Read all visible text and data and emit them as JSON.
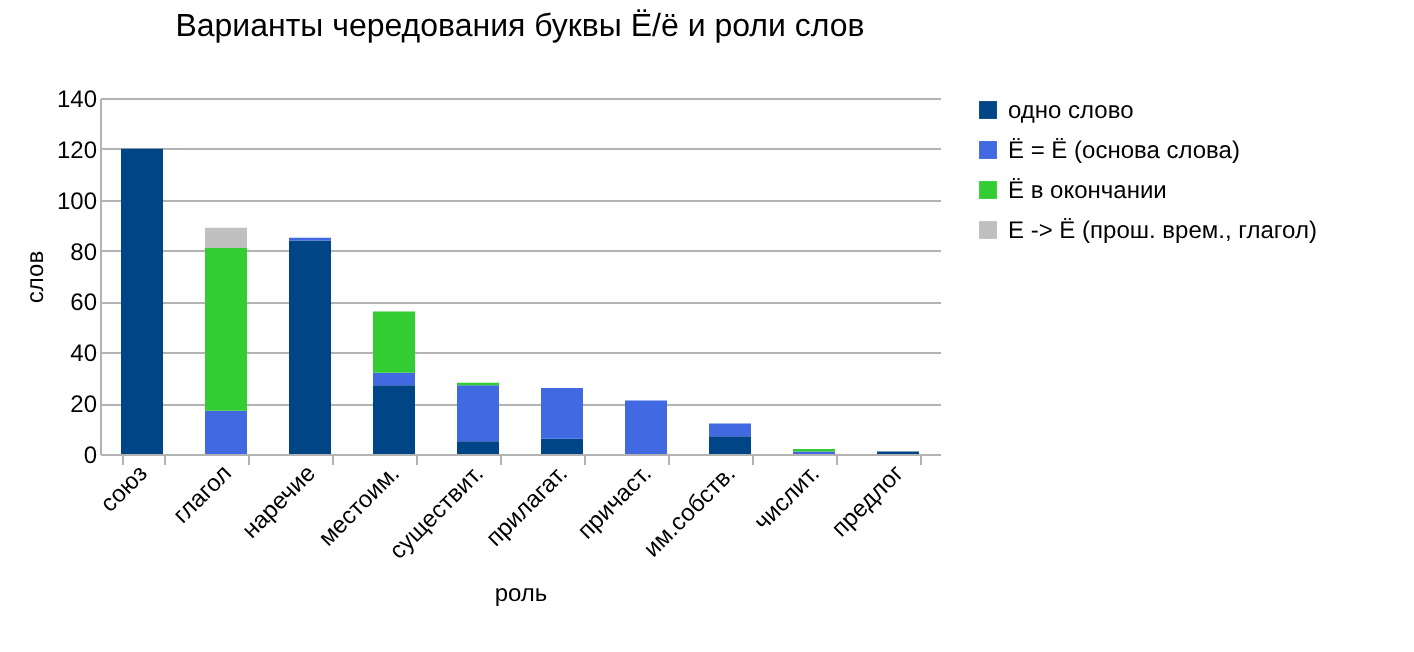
{
  "chart_data": {
    "type": "bar",
    "title": "Варианты чередования буквы Ё/ё и роли слов",
    "xlabel": "роль",
    "ylabel": "слов",
    "categories": [
      "союз",
      "глагол",
      "наречие",
      "местоим.",
      "существит.",
      "прилагат.",
      "причаст.",
      "им.собств.",
      "числит.",
      "предлог"
    ],
    "series": [
      {
        "name": "одно слово",
        "color": "#004586",
        "values": [
          120,
          0,
          84,
          27,
          5,
          6,
          0,
          7,
          0,
          1
        ]
      },
      {
        "name": "Ё = Ё (основа слова)",
        "color": "#4169e1",
        "values": [
          0,
          17,
          1,
          5,
          22,
          20,
          21,
          5,
          1,
          0
        ]
      },
      {
        "name": "Ё в окончании",
        "color": "#33cc33",
        "values": [
          0,
          64,
          0,
          24,
          1,
          0,
          0,
          0,
          1,
          0
        ]
      },
      {
        "name": "Е -> Ё (прош. врем., глагол)",
        "color": "#c0c0c0",
        "values": [
          0,
          8,
          0,
          0,
          0,
          0,
          0,
          0,
          0,
          0
        ]
      }
    ],
    "stacked": true,
    "ylim": [
      0,
      140
    ],
    "yticks": [
      0,
      20,
      40,
      60,
      80,
      100,
      120,
      140
    ],
    "grid": "y",
    "legend": "right"
  }
}
